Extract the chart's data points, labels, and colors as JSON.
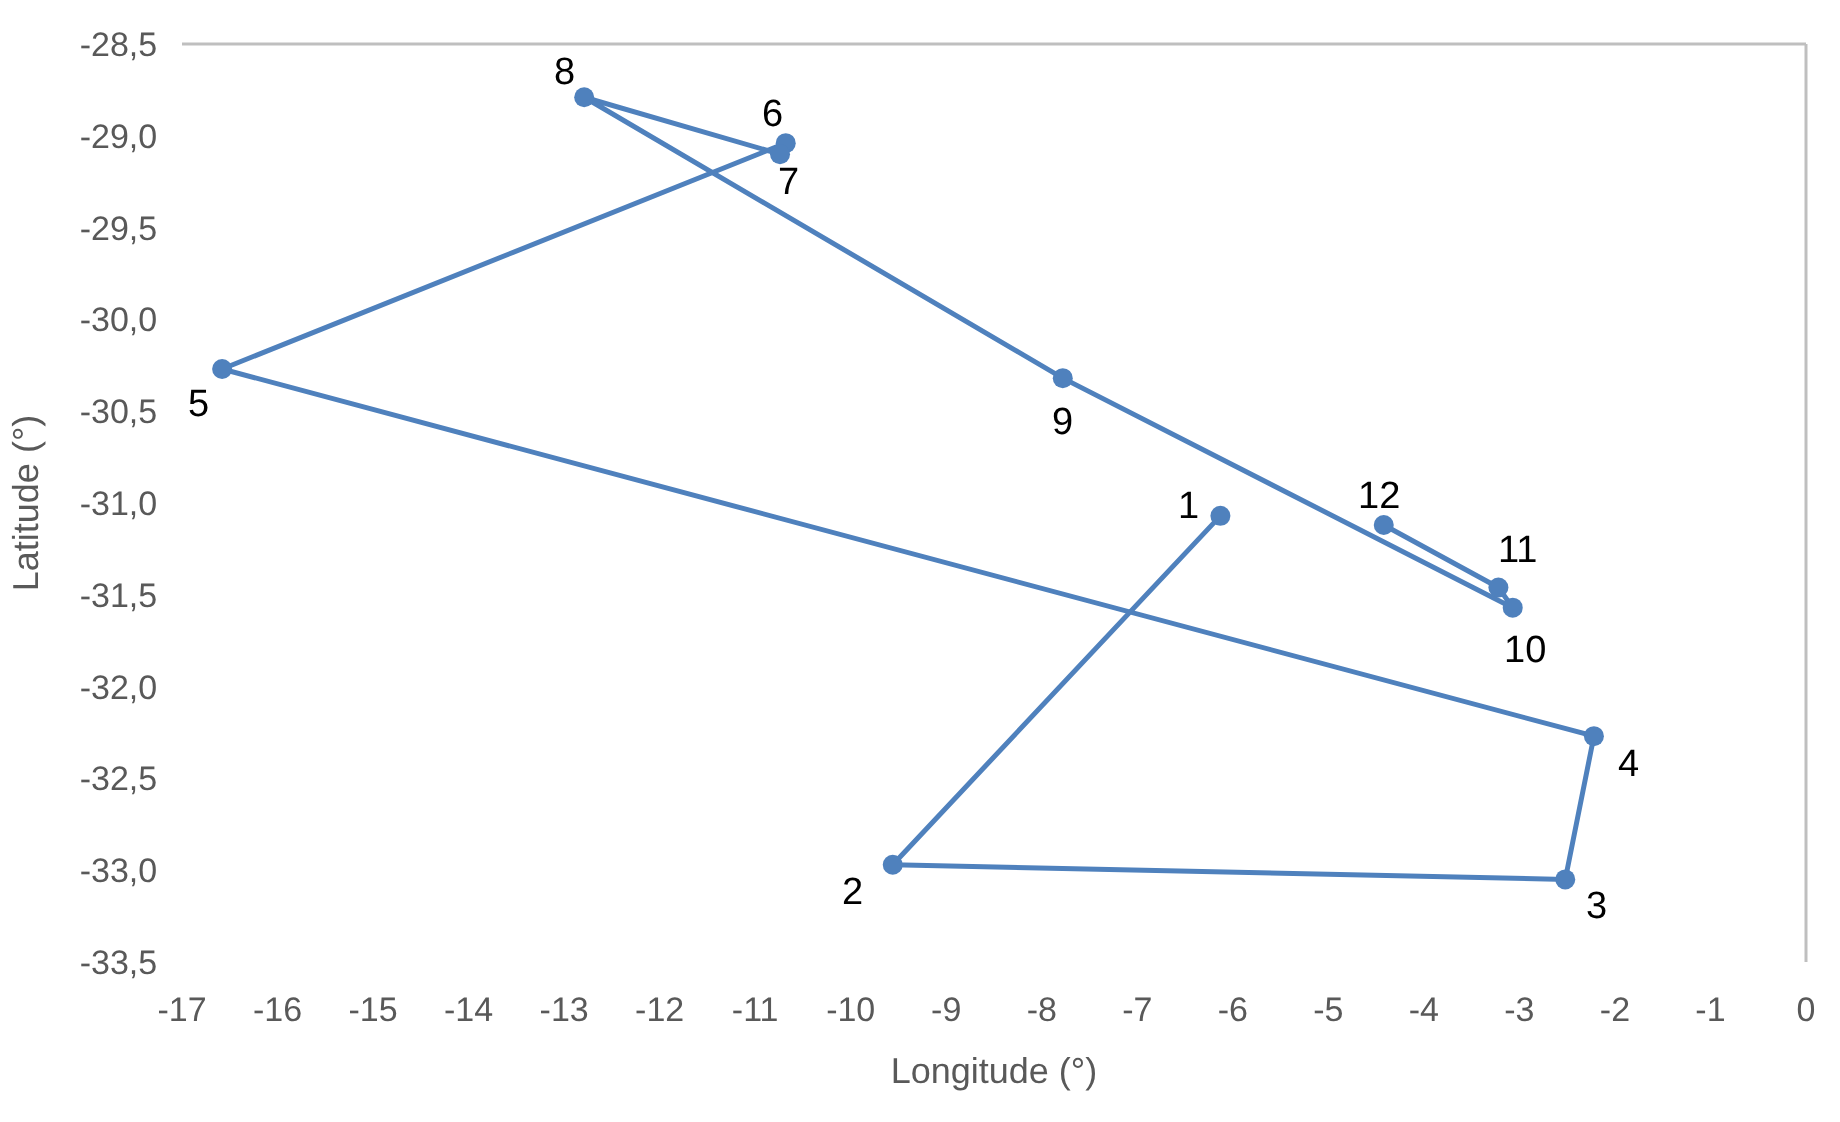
{
  "chart_data": {
    "type": "line",
    "xlabel": "Longitude (°)",
    "ylabel": "Latitude (°)",
    "x": [
      -6.13,
      -9.56,
      -2.52,
      -2.22,
      -16.58,
      -10.68,
      -10.74,
      -12.79,
      -7.78,
      -3.07,
      -3.22,
      -4.42
    ],
    "series": [
      {
        "color": "#4f81bd",
        "values": [
          -31.07,
          -32.97,
          -33.05,
          -32.27,
          -30.27,
          -29.04,
          -29.1,
          -28.79,
          -30.32,
          -31.57,
          -31.46,
          -31.12
        ]
      }
    ],
    "marker": "circle",
    "line_style": "solid",
    "xlim": [
      -17,
      0
    ],
    "xticks": [
      -17,
      -16,
      -15,
      -14,
      -13,
      -12,
      -11,
      -10,
      -9,
      -8,
      -7,
      -6,
      -5,
      -4,
      -3,
      -2,
      -1,
      0
    ],
    "ylim": [
      -33.5,
      -28.5
    ],
    "yticks": [
      {
        "value": -33.5,
        "label": "-33,5"
      },
      {
        "value": -33,
        "label": "-33,0"
      },
      {
        "value": -32.5,
        "label": "-32,5"
      },
      {
        "value": -32,
        "label": "-32,0"
      },
      {
        "value": -31.5,
        "label": "-31,5"
      },
      {
        "value": -31,
        "label": "-31,0"
      },
      {
        "value": -30.5,
        "label": "-30,5"
      },
      {
        "value": -30,
        "label": "-30,0"
      },
      {
        "value": -29.5,
        "label": "-29,5"
      },
      {
        "value": -29,
        "label": "-29,0"
      },
      {
        "value": -28.5,
        "label": "-28,5"
      }
    ],
    "annotations": [
      {
        "text": "1",
        "x": -6.13,
        "y": -31.07
      },
      {
        "text": "2",
        "x": -9.56,
        "y": -32.97
      },
      {
        "text": "3",
        "x": -2.52,
        "y": -33.05
      },
      {
        "text": "4",
        "x": -2.22,
        "y": -32.27
      },
      {
        "text": "5",
        "x": -16.58,
        "y": -30.27
      },
      {
        "text": "6",
        "x": -10.68,
        "y": -29.04
      },
      {
        "text": "7",
        "x": -10.74,
        "y": -29.1
      },
      {
        "text": "8",
        "x": -12.79,
        "y": -28.79
      },
      {
        "text": "9",
        "x": -7.78,
        "y": -30.32
      },
      {
        "text": "10",
        "x": -3.07,
        "y": -31.57
      },
      {
        "text": "11",
        "x": -3.22,
        "y": -31.46
      },
      {
        "text": "12",
        "x": -4.42,
        "y": -31.12
      }
    ]
  }
}
